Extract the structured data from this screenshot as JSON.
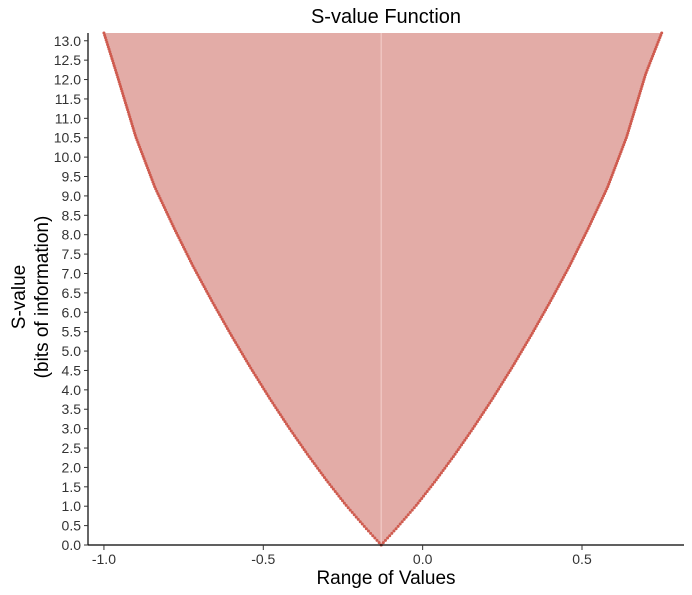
{
  "chart_data": {
    "type": "area",
    "title": "S-value Function",
    "xlabel": "Range of Values",
    "ylabel_lines": [
      "S-value",
      "(bits of information)"
    ],
    "xlim": [
      -1.05,
      0.82
    ],
    "ylim": [
      0,
      13.2
    ],
    "x_ticks": [
      -1.0,
      -0.5,
      0.0,
      0.5
    ],
    "x_tick_labels": [
      "-1.0",
      "-0.5",
      "0.0",
      "0.5"
    ],
    "y_ticks": [
      0.0,
      0.5,
      1.0,
      1.5,
      2.0,
      2.5,
      3.0,
      3.5,
      4.0,
      4.5,
      5.0,
      5.5,
      6.0,
      6.5,
      7.0,
      7.5,
      8.0,
      8.5,
      9.0,
      9.5,
      10.0,
      10.5,
      11.0,
      11.5,
      12.0,
      12.5,
      13.0
    ],
    "y_tick_labels": [
      "0.0",
      "0.5",
      "1.0",
      "1.5",
      "2.0",
      "2.5",
      "3.0",
      "3.5",
      "4.0",
      "4.5",
      "5.0",
      "5.5",
      "6.0",
      "6.5",
      "7.0",
      "7.5",
      "8.0",
      "8.5",
      "9.0",
      "9.5",
      "10.0",
      "10.5",
      "11.0",
      "11.5",
      "12.0",
      "12.5",
      "13.0"
    ],
    "point_estimate": -0.13,
    "max_s_value": 13.2,
    "curve": {
      "left_x": [
        -0.13,
        -0.18,
        -0.24,
        -0.3,
        -0.36,
        -0.42,
        -0.48,
        -0.54,
        -0.6,
        -0.66,
        -0.72,
        -0.78,
        -0.84,
        -0.9,
        -0.96,
        -1.0
      ],
      "left_s": [
        0.0,
        0.45,
        1.02,
        1.65,
        2.32,
        3.03,
        3.78,
        4.57,
        5.4,
        6.27,
        7.18,
        8.17,
        9.22,
        10.52,
        12.15,
        13.2
      ],
      "right_x": [
        -0.13,
        -0.08,
        -0.02,
        0.04,
        0.1,
        0.16,
        0.22,
        0.28,
        0.34,
        0.4,
        0.46,
        0.52,
        0.58,
        0.64,
        0.7,
        0.75
      ],
      "right_s": [
        0.0,
        0.45,
        1.02,
        1.65,
        2.32,
        3.03,
        3.78,
        4.57,
        5.4,
        6.27,
        7.18,
        8.17,
        9.22,
        10.52,
        12.15,
        13.2
      ]
    },
    "colors": {
      "fill": "#e3aca7",
      "curve": "#cf5b4f",
      "center_line": "#f0c7c2",
      "axis": "#000000",
      "tick_text": "#333333"
    }
  }
}
